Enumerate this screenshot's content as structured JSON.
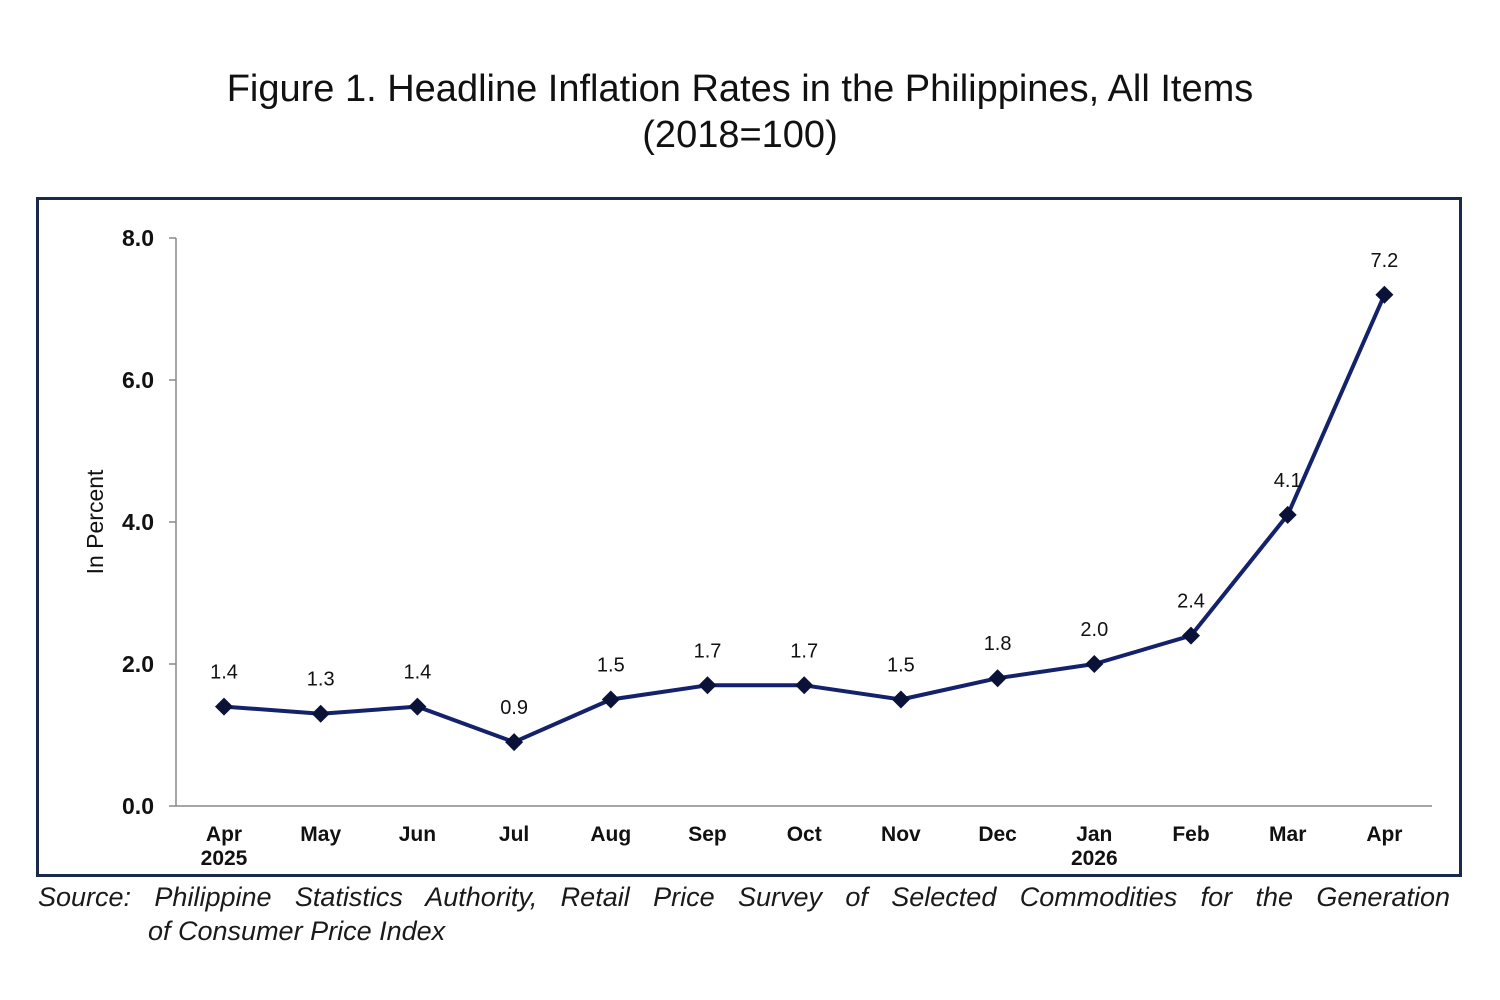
{
  "figure": {
    "title_line1": "Figure 1. Headline Inflation Rates in the Philippines, All Items",
    "title_line2": "(2018=100)",
    "source_line1": "Source:  Philippine  Statistics  Authority,  Retail  Price  Survey  of  Selected  Commodities  for  the  Generation",
    "source_line2": "of Consumer Price Index"
  },
  "chart_data": {
    "type": "line",
    "title": "Figure 1. Headline Inflation Rates in the Philippines, All Items (2018=100)",
    "ylabel": "In Percent",
    "xlabel": "",
    "ylim": [
      0,
      8
    ],
    "yticks": [
      "0.0",
      "2.0",
      "4.0",
      "6.0",
      "8.0"
    ],
    "categories": [
      "Apr",
      "May",
      "Jun",
      "Jul",
      "Aug",
      "Sep",
      "Oct",
      "Nov",
      "Dec",
      "Jan",
      "Feb",
      "Mar",
      "Apr"
    ],
    "category_sublabels": [
      "2025",
      "",
      "",
      "",
      "",
      "",
      "",
      "",
      "",
      "2026",
      "",
      "",
      ""
    ],
    "values": [
      1.4,
      1.3,
      1.4,
      0.9,
      1.5,
      1.7,
      1.7,
      1.5,
      1.8,
      2.0,
      2.4,
      4.1,
      7.2
    ],
    "value_labels": [
      "1.4",
      "1.3",
      "1.4",
      "0.9",
      "1.5",
      "1.7",
      "1.7",
      "1.5",
      "1.8",
      "2.0",
      "2.4",
      "4.1",
      "7.2"
    ],
    "grid": false,
    "legend": "none",
    "colors": {
      "line": "#14216b",
      "marker": "#0b1238",
      "axis": "#888888"
    }
  }
}
